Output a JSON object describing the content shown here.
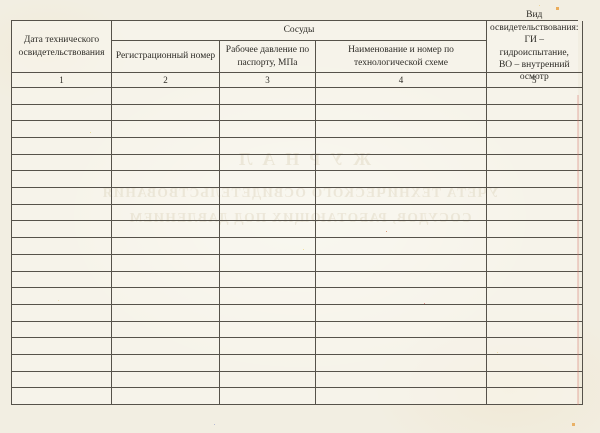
{
  "table": {
    "group_header": "Сосуды",
    "columns": [
      {
        "label": "Дата технического освидетельствования",
        "number": "1"
      },
      {
        "label": "Регистрационный номер",
        "number": "2"
      },
      {
        "label": "Рабочее давление по паспорту, МПа",
        "number": "3"
      },
      {
        "label": "Наименование и номер по технологической схеме",
        "number": "4"
      },
      {
        "label": "Вид освидетельствования:\nГИ – гидроиспытание,\nВО – внутренний осмотр",
        "number": "5"
      }
    ],
    "empty_row_count": 19
  },
  "bleed_through": {
    "line1": "ЖУРНАЛ",
    "line2": "УЧЕТА ТЕХНИЧЕСКОГО ОСВИДЕТЕЛЬСТВОВАНИЯ",
    "line3": "СОСУДОВ, РАБОТАЮЩИХ ПОД ДАВЛЕНИЕМ"
  },
  "colors": {
    "paper": "#f2eee2",
    "grid_line": "#56524a",
    "ink": "#2e2c27",
    "bleed_ink": "#c2b28c"
  }
}
